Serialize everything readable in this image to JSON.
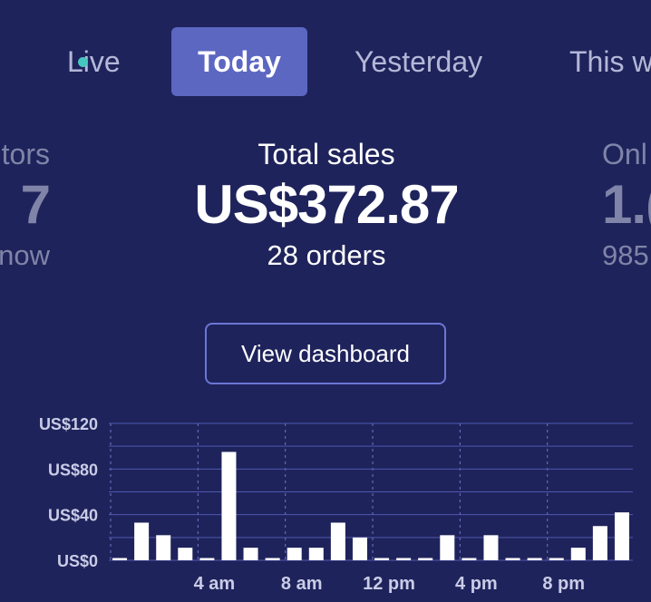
{
  "tabs": {
    "live": "Live",
    "today": "Today",
    "yesterday": "Yesterday",
    "this_week": "This w"
  },
  "stats": {
    "left": {
      "label": "tors",
      "value": "7",
      "sub": "now"
    },
    "center": {
      "label": "Total sales",
      "value": "US$372.87",
      "sub": "28 orders"
    },
    "right": {
      "label": "Onl",
      "value": "1.(",
      "sub": "985"
    }
  },
  "dashboard_button": "View dashboard",
  "colors": {
    "background": "#1f235b",
    "accent": "#5c67c2",
    "live": "#46c6c0",
    "bar": "#ffffff"
  },
  "chart_data": {
    "type": "bar",
    "title": "",
    "xlabel": "",
    "ylabel": "",
    "ylim": [
      0,
      120
    ],
    "y_ticks": [
      {
        "value": 0,
        "label": "US$0"
      },
      {
        "value": 40,
        "label": "US$40"
      },
      {
        "value": 80,
        "label": "US$80"
      },
      {
        "value": 120,
        "label": "US$120"
      }
    ],
    "x_ticks": [
      {
        "index": 4,
        "label": "4 am"
      },
      {
        "index": 8,
        "label": "8 am"
      },
      {
        "index": 12,
        "label": "12 pm"
      },
      {
        "index": 16,
        "label": "4 pm"
      },
      {
        "index": 20,
        "label": "8 pm"
      }
    ],
    "categories": [
      "0",
      "1",
      "2",
      "3",
      "4",
      "5",
      "6",
      "7",
      "8",
      "9",
      "10",
      "11",
      "12",
      "13",
      "14",
      "15",
      "16",
      "17",
      "18",
      "19",
      "20",
      "21",
      "22",
      "23"
    ],
    "values": [
      2,
      33,
      22,
      11,
      2,
      95,
      11,
      2,
      11,
      11,
      33,
      20,
      2,
      2,
      2,
      22,
      2,
      22,
      2,
      2,
      2,
      11,
      30,
      42
    ],
    "grid": true
  }
}
